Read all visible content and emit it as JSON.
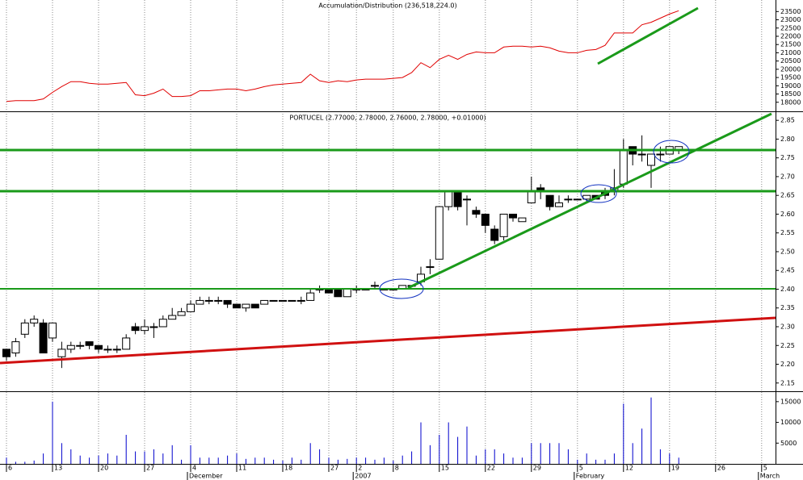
{
  "chart_data": [
    {
      "type": "line",
      "title": "Accumulation/Distribution (236,518,224.0)",
      "color": "#e00000",
      "ylim": [
        17450,
        24200
      ],
      "yticks": [
        18000,
        18500,
        19000,
        19500,
        20000,
        20500,
        21000,
        21500,
        22000,
        22500,
        23000,
        23500
      ],
      "values": [
        18050,
        18100,
        18100,
        18100,
        18200,
        18600,
        18950,
        19250,
        19250,
        19150,
        19100,
        19100,
        19150,
        19200,
        18450,
        18400,
        18550,
        18800,
        18350,
        18350,
        18400,
        18700,
        18700,
        18750,
        18800,
        18800,
        18700,
        18800,
        18950,
        19050,
        19100,
        19150,
        19200,
        19700,
        19300,
        19200,
        19300,
        19250,
        19350,
        19400,
        19400,
        19400,
        19450,
        19500,
        19800,
        20400,
        20100,
        20600,
        20850,
        20600,
        20900,
        21050,
        21000,
        21000,
        21350,
        21400,
        21400,
        21350,
        21400,
        21300,
        21100,
        21000,
        21000,
        21150,
        21200,
        21450,
        22200,
        22200,
        22200,
        22700,
        22850,
        23100,
        23350,
        23550,
        null,
        null,
        null,
        null,
        null,
        null,
        null,
        null,
        null,
        null
      ]
    },
    {
      "type": "candlestick",
      "title": "PORTUCEL (2.77000, 2.78000, 2.76000, 2.78000, +0.01000)",
      "up_color": "#ffffff",
      "down_color": "#000000",
      "ylim": [
        2.128,
        2.874
      ],
      "yticks": [
        2.15,
        {
          "value": 2.2,
          "label": "2.20"
        },
        2.25,
        {
          "value": 2.3,
          "label": "2.30"
        },
        2.35,
        {
          "value": 2.4,
          "label": "2.40"
        },
        2.45,
        {
          "value": 2.5,
          "label": "2.50"
        },
        2.55,
        {
          "value": 2.6,
          "label": "2.60"
        },
        2.65,
        {
          "value": 2.7,
          "label": "2.70"
        },
        2.75,
        {
          "value": 2.8,
          "label": "2.80"
        },
        2.85
      ],
      "open": [
        2.24,
        2.23,
        2.28,
        2.31,
        2.31,
        2.27,
        2.22,
        2.24,
        2.25,
        2.26,
        2.25,
        2.24,
        2.24,
        2.24,
        2.3,
        2.29,
        2.3,
        2.3,
        2.32,
        2.33,
        2.34,
        2.36,
        2.37,
        2.37,
        2.37,
        2.36,
        2.35,
        2.36,
        2.36,
        2.37,
        2.37,
        2.37,
        2.37,
        2.37,
        2.4,
        2.4,
        2.4,
        2.38,
        2.4,
        2.4,
        2.41,
        2.4,
        2.4,
        2.4,
        2.41,
        2.42,
        2.46,
        2.48,
        2.62,
        2.66,
        2.64,
        2.61,
        2.6,
        2.56,
        2.54,
        2.6,
        2.58,
        2.63,
        2.67,
        2.65,
        2.62,
        2.64,
        2.64,
        2.64,
        2.65,
        2.66,
        2.66,
        2.68,
        2.78,
        2.76,
        2.73,
        2.76,
        2.76,
        2.77,
        null,
        null,
        null,
        null,
        null,
        null,
        null,
        null,
        null,
        null
      ],
      "high": [
        2.24,
        2.27,
        2.32,
        2.33,
        2.32,
        2.31,
        2.26,
        2.26,
        2.26,
        2.26,
        2.25,
        2.25,
        2.25,
        2.28,
        2.31,
        2.32,
        2.31,
        2.33,
        2.35,
        2.35,
        2.37,
        2.38,
        2.38,
        2.38,
        2.37,
        2.36,
        2.36,
        2.36,
        2.37,
        2.37,
        2.37,
        2.37,
        2.38,
        2.4,
        2.41,
        2.4,
        2.4,
        2.4,
        2.41,
        2.4,
        2.42,
        2.4,
        2.4,
        2.41,
        2.41,
        2.46,
        2.48,
        2.62,
        2.66,
        2.66,
        2.65,
        2.62,
        2.6,
        2.57,
        2.6,
        2.6,
        2.59,
        2.7,
        2.68,
        2.65,
        2.65,
        2.65,
        2.64,
        2.65,
        2.65,
        2.67,
        2.72,
        2.8,
        2.78,
        2.81,
        2.76,
        2.78,
        2.78,
        2.78,
        null,
        null,
        null,
        null,
        null,
        null,
        null,
        null,
        null,
        null
      ],
      "low": [
        2.21,
        2.22,
        2.27,
        2.3,
        2.23,
        2.26,
        2.19,
        2.23,
        2.24,
        2.24,
        2.23,
        2.23,
        2.23,
        2.24,
        2.28,
        2.28,
        2.27,
        2.3,
        2.32,
        2.33,
        2.34,
        2.36,
        2.36,
        2.36,
        2.35,
        2.35,
        2.34,
        2.35,
        2.36,
        2.37,
        2.37,
        2.37,
        2.36,
        2.37,
        2.39,
        2.39,
        2.38,
        2.38,
        2.39,
        2.4,
        2.4,
        2.4,
        2.4,
        2.4,
        2.41,
        2.41,
        2.44,
        2.48,
        2.61,
        2.61,
        2.57,
        2.59,
        2.55,
        2.52,
        2.53,
        2.58,
        2.58,
        2.63,
        2.64,
        2.61,
        2.62,
        2.63,
        2.64,
        2.63,
        2.64,
        2.64,
        2.65,
        2.67,
        2.73,
        2.74,
        2.67,
        2.74,
        2.76,
        2.76,
        null,
        null,
        null,
        null,
        null,
        null,
        null,
        null,
        null,
        null
      ],
      "close": [
        2.22,
        2.26,
        2.31,
        2.32,
        2.23,
        2.31,
        2.24,
        2.25,
        2.25,
        2.25,
        2.24,
        2.24,
        2.24,
        2.27,
        2.29,
        2.3,
        2.3,
        2.32,
        2.33,
        2.34,
        2.36,
        2.37,
        2.37,
        2.37,
        2.36,
        2.35,
        2.36,
        2.35,
        2.37,
        2.37,
        2.37,
        2.37,
        2.37,
        2.39,
        2.4,
        2.39,
        2.38,
        2.4,
        2.4,
        2.4,
        2.41,
        2.4,
        2.4,
        2.41,
        2.41,
        2.44,
        2.46,
        2.62,
        2.66,
        2.62,
        2.64,
        2.6,
        2.57,
        2.53,
        2.6,
        2.59,
        2.59,
        2.66,
        2.66,
        2.62,
        2.63,
        2.64,
        2.64,
        2.65,
        2.64,
        2.65,
        2.67,
        2.77,
        2.76,
        2.76,
        2.76,
        2.76,
        2.78,
        2.78,
        null,
        null,
        null,
        null,
        null,
        null,
        null,
        null,
        null,
        null
      ]
    },
    {
      "type": "bar",
      "color": "#0000cc",
      "ylim": [
        0,
        17500
      ],
      "yticks": [
        5000,
        10000,
        15000
      ],
      "categories": [
        "6",
        null,
        null,
        null,
        null,
        "13",
        null,
        null,
        null,
        null,
        "20",
        null,
        null,
        null,
        null,
        "27",
        null,
        null,
        null,
        null,
        "4",
        null,
        null,
        null,
        null,
        "11",
        null,
        null,
        null,
        null,
        "18",
        null,
        null,
        null,
        null,
        "27",
        null,
        null,
        "2",
        null,
        null,
        null,
        "8",
        null,
        null,
        null,
        null,
        "15",
        null,
        null,
        null,
        null,
        "22",
        null,
        null,
        null,
        null,
        "29",
        null,
        null,
        null,
        null,
        "5",
        null,
        null,
        null,
        null,
        "12",
        null,
        null,
        null,
        null,
        "19",
        null,
        null,
        null,
        null,
        "26",
        null,
        null,
        null,
        null,
        "5",
        null
      ],
      "month_labels": [
        null,
        null,
        null,
        null,
        null,
        null,
        null,
        null,
        null,
        null,
        null,
        null,
        null,
        null,
        null,
        null,
        null,
        null,
        null,
        null,
        "December",
        null,
        null,
        null,
        null,
        null,
        null,
        null,
        null,
        null,
        null,
        null,
        null,
        null,
        null,
        null,
        null,
        null,
        "2007",
        null,
        null,
        null,
        null,
        null,
        null,
        null,
        null,
        null,
        null,
        null,
        null,
        null,
        null,
        null,
        null,
        null,
        null,
        null,
        null,
        null,
        null,
        null,
        "February",
        null,
        null,
        null,
        null,
        null,
        null,
        null,
        null,
        null,
        null,
        null,
        null,
        null,
        null,
        null,
        null,
        null,
        null,
        null,
        "March",
        null
      ],
      "values": [
        1500,
        500,
        500,
        800,
        2500,
        15000,
        5000,
        3500,
        2000,
        1500,
        2000,
        2500,
        2000,
        7000,
        3000,
        3000,
        3500,
        2500,
        4500,
        1000,
        4500,
        1500,
        1500,
        1500,
        2000,
        2500,
        1200,
        1500,
        1500,
        1000,
        800,
        1500,
        1000,
        5000,
        3500,
        1500,
        1000,
        1200,
        1500,
        1500,
        1000,
        1500,
        800,
        2000,
        3000,
        10000,
        4500,
        7000,
        10000,
        6500,
        9000,
        2000,
        3500,
        3500,
        2500,
        1500,
        1500,
        5000,
        5000,
        5000,
        5000,
        3500,
        1000,
        2500,
        1000,
        1000,
        2500,
        14500,
        5000,
        8500,
        16000,
        3500,
        2500,
        1500,
        null,
        null,
        null,
        null,
        null,
        null,
        null,
        null,
        null,
        null
      ]
    }
  ]
}
